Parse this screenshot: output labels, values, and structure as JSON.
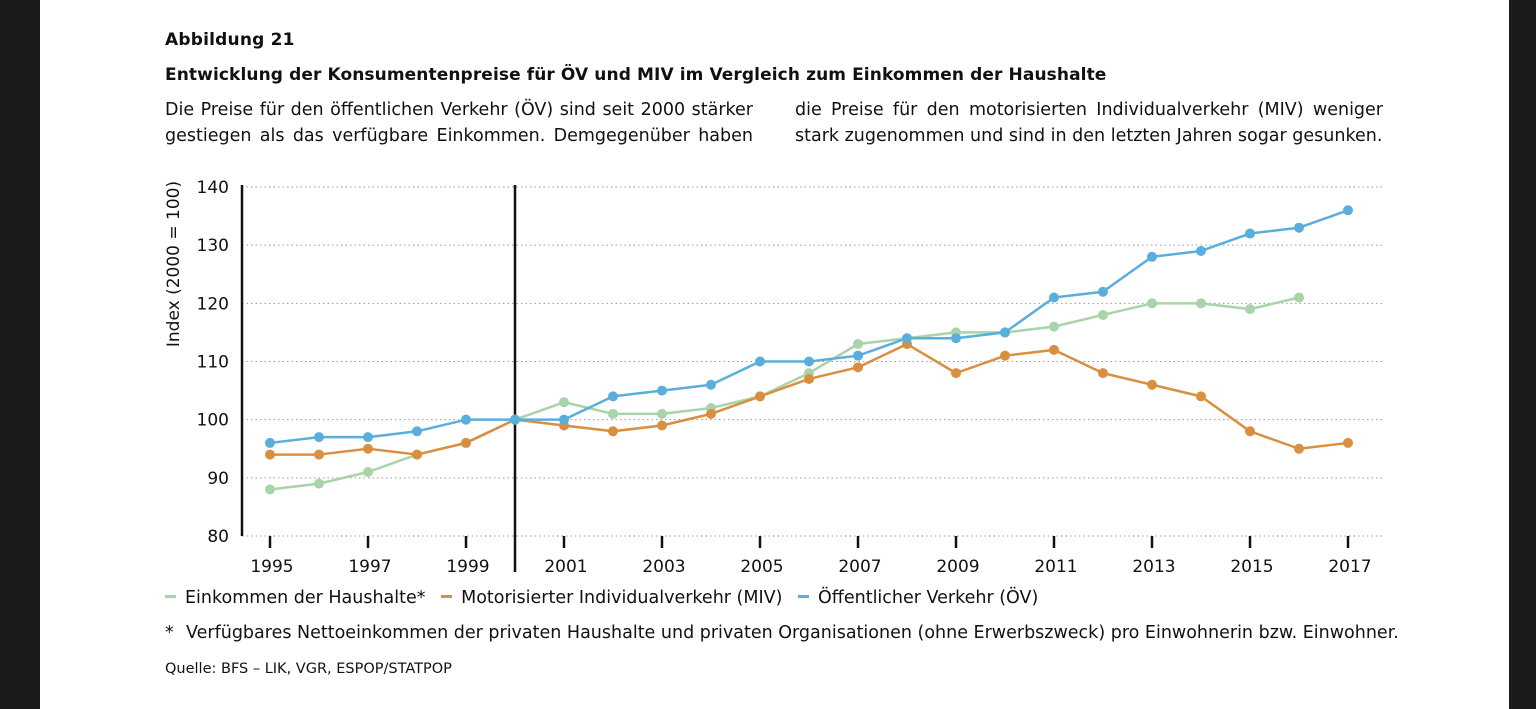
{
  "figure": {
    "label": "Abbildung 21",
    "title": "Entwicklung der Konsumentenpreise für ÖV und MIV im Vergleich zum Einkommen der Haushalte",
    "intro": "Die Preise für den öffentlichen Verkehr (ÖV) sind seit 2000 stärker gestiegen als das verfügbare Einkommen. Demgegenüber haben die Preise für den motorisierten Individualverkehr (MIV) weniger stark zugenommen und sind in den letzten Jahren sogar gesunken.",
    "footnote_marker": "*",
    "footnote": "Verfügbares Nettoeinkommen der privaten Haushalte und privaten Organisationen (ohne Erwerbszweck) pro Einwohnerin bzw. Einwohner.",
    "source": "Quelle: BFS – LIK, VGR, ESPOP/STATPOP"
  },
  "chart_data": {
    "type": "line",
    "title": "",
    "xlabel": "",
    "ylabel": "Index (2000 = 100)",
    "ylim": [
      80,
      140
    ],
    "yticks": [
      80,
      90,
      100,
      110,
      120,
      130,
      140
    ],
    "xlim": [
      1995,
      2017
    ],
    "xtick_labels": [
      "1995",
      "1997",
      "1999",
      "2001",
      "2003",
      "2005",
      "2007",
      "2009",
      "2011",
      "2013",
      "2015",
      "2017"
    ],
    "reference_line_x": 2000,
    "grid": "horizontal dotted",
    "legend_position": "bottom-left",
    "series": [
      {
        "name": "Einkommen der Haushalte*",
        "color": "#a9d3a9",
        "x": [
          1995,
          1996,
          1997,
          1998,
          1999,
          2000,
          2001,
          2002,
          2003,
          2004,
          2005,
          2006,
          2007,
          2008,
          2009,
          2010,
          2011,
          2012,
          2013,
          2014,
          2015,
          2016
        ],
        "y": [
          88,
          89,
          91,
          94,
          96,
          100,
          103,
          101,
          101,
          102,
          104,
          108,
          113,
          114,
          115,
          115,
          116,
          118,
          120,
          120,
          119,
          121
        ]
      },
      {
        "name": "Motorisierter Individualverkehr (MIV)",
        "color": "#d98f3f",
        "x": [
          1995,
          1996,
          1997,
          1998,
          1999,
          2000,
          2001,
          2002,
          2003,
          2004,
          2005,
          2006,
          2007,
          2008,
          2009,
          2010,
          2011,
          2012,
          2013,
          2014,
          2015,
          2016,
          2017
        ],
        "y": [
          94,
          94,
          95,
          94,
          96,
          100,
          99,
          98,
          99,
          101,
          104,
          107,
          109,
          113,
          108,
          111,
          112,
          108,
          106,
          104,
          98,
          95,
          96
        ]
      },
      {
        "name": "Öffentlicher Verkehr (ÖV)",
        "color": "#5aaedc",
        "x": [
          1995,
          1996,
          1997,
          1998,
          1999,
          2000,
          2001,
          2002,
          2003,
          2004,
          2005,
          2006,
          2007,
          2008,
          2009,
          2010,
          2011,
          2012,
          2013,
          2014,
          2015,
          2016,
          2017
        ],
        "y": [
          96,
          97,
          97,
          98,
          100,
          100,
          100,
          104,
          105,
          106,
          110,
          110,
          111,
          114,
          114,
          115,
          121,
          122,
          128,
          129,
          132,
          133,
          136
        ]
      }
    ]
  }
}
